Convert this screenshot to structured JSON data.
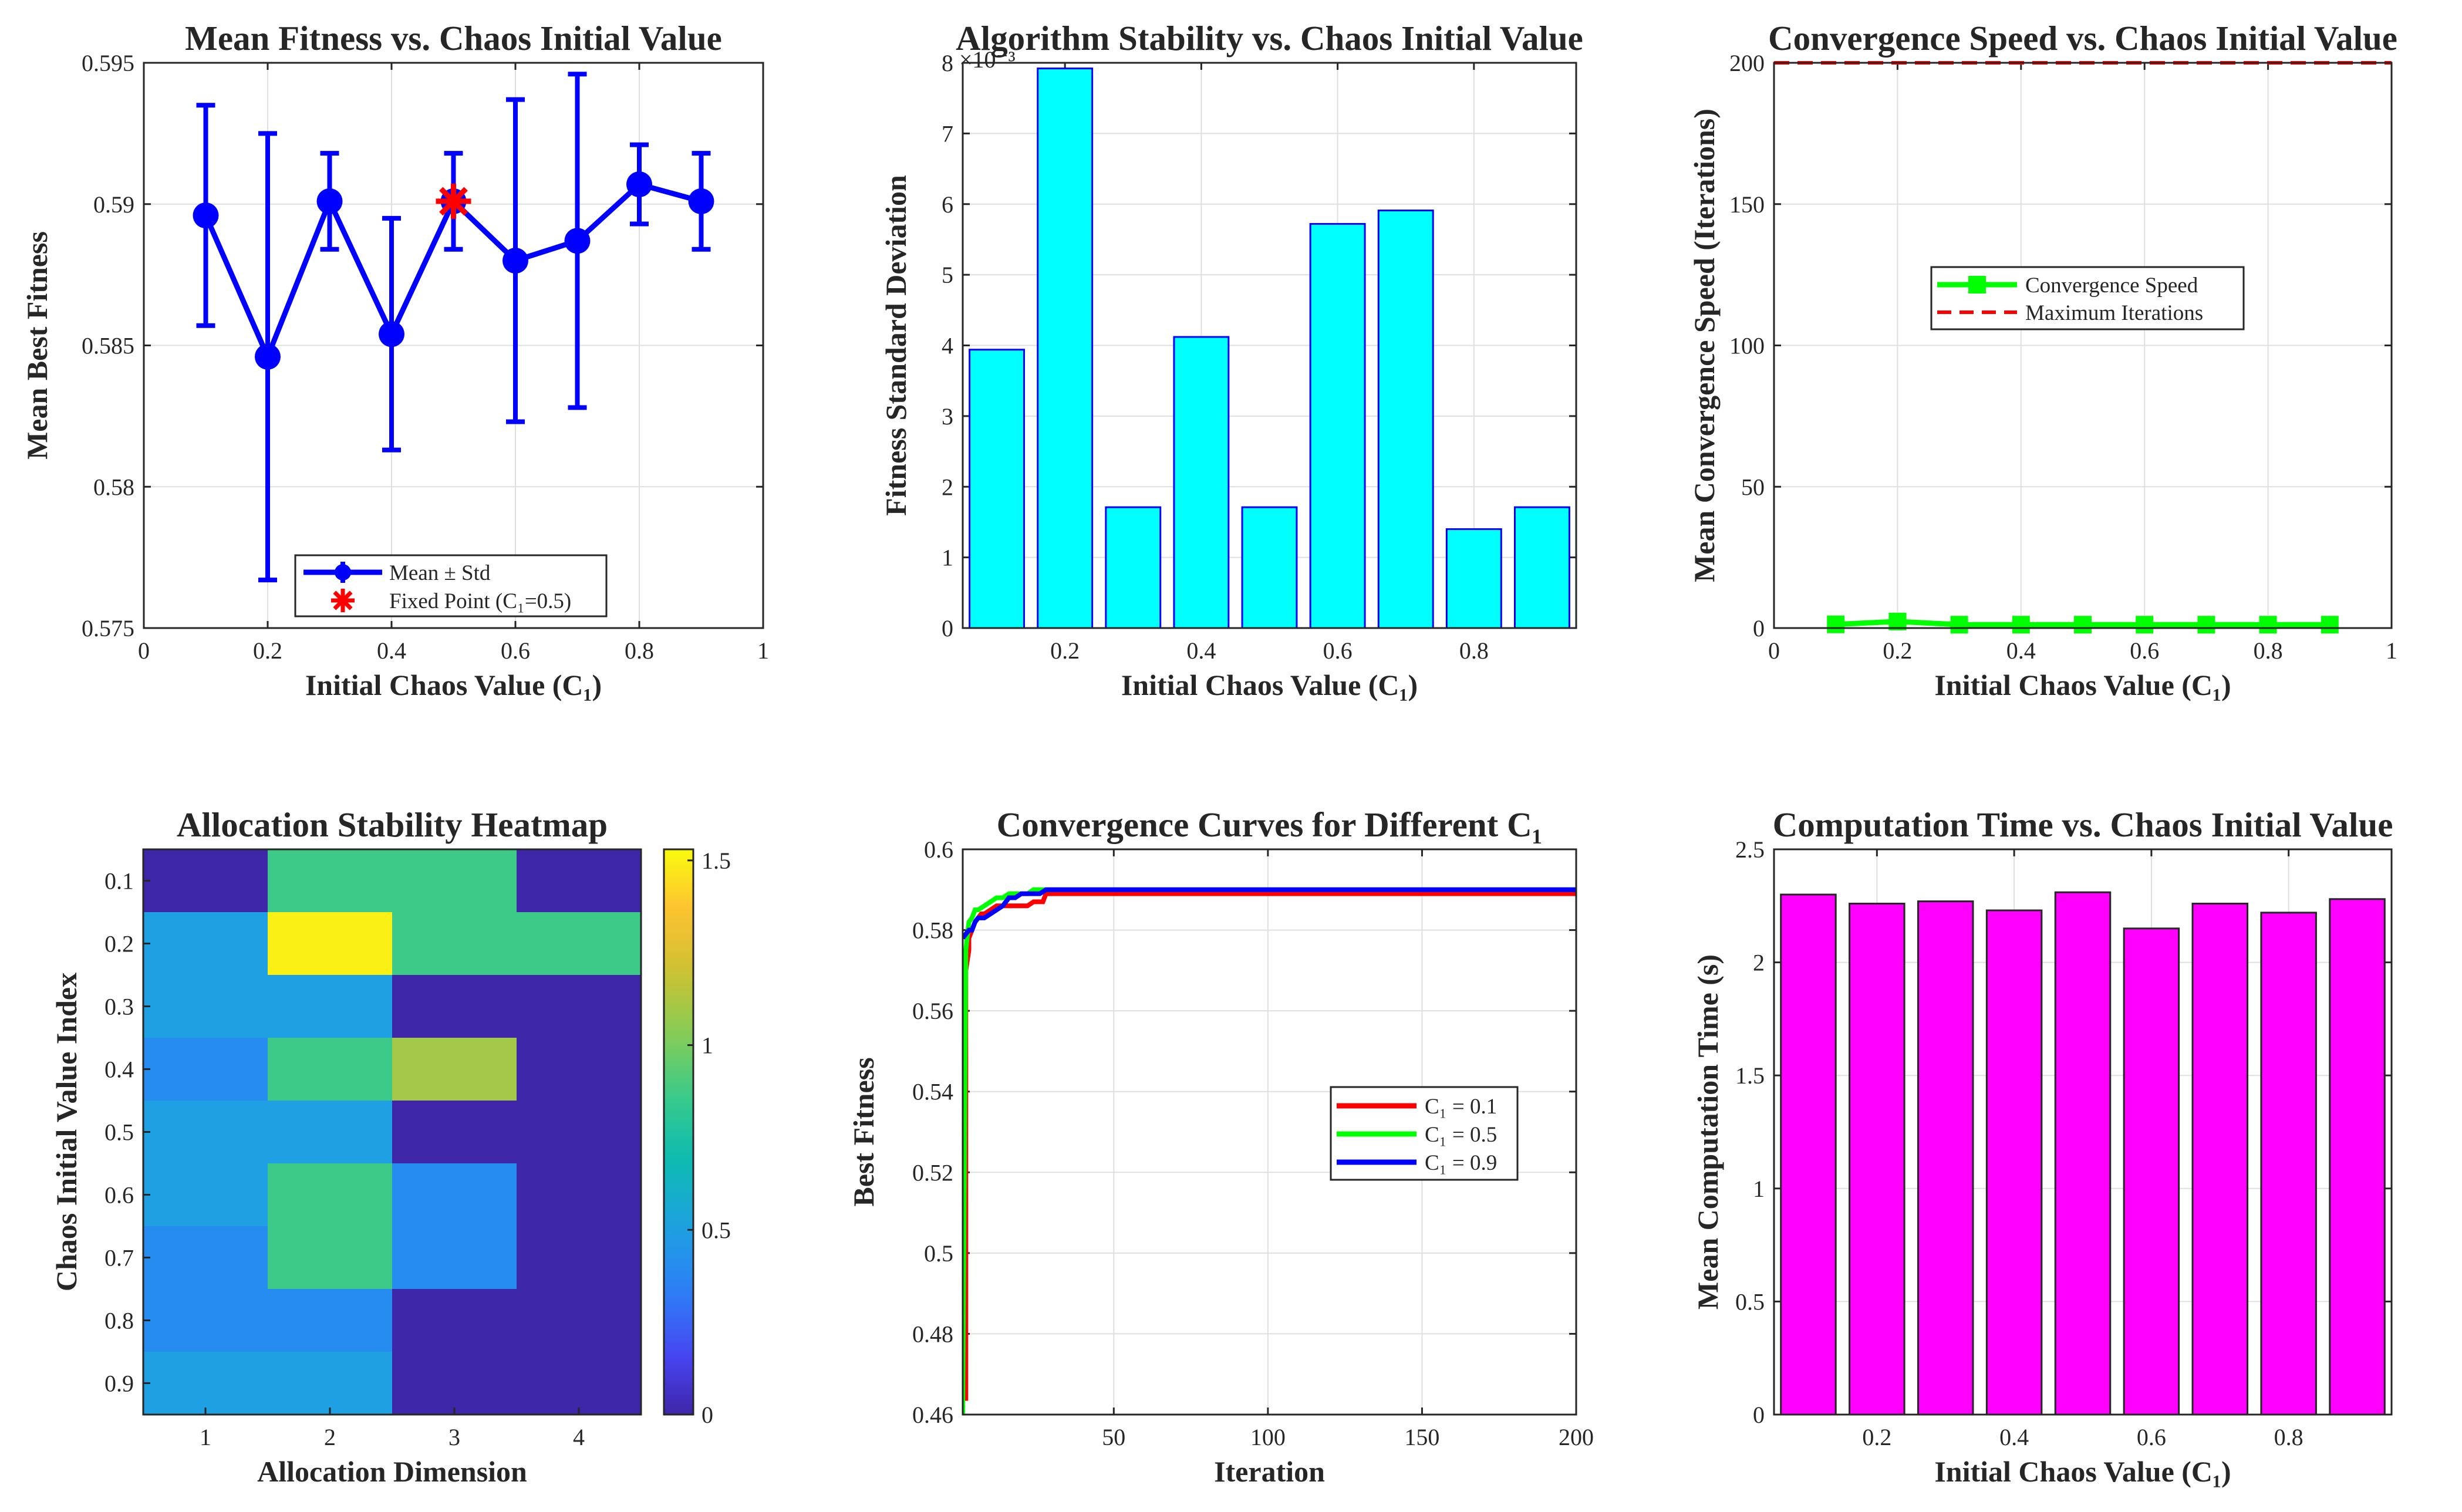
{
  "chart_data": [
    {
      "type": "line",
      "title": "Mean Fitness vs. Chaos Initial Value",
      "xlabel": "Initial Chaos Value (C₁)",
      "ylabel": "Mean Best Fitness",
      "xlim": [
        0,
        1
      ],
      "ylim": [
        0.575,
        0.595
      ],
      "xticks": [
        "0",
        "0.2",
        "0.4",
        "0.6",
        "0.8",
        "1"
      ],
      "yticks": [
        "0.575",
        "0.58",
        "0.585",
        "0.59",
        "0.595"
      ],
      "grid": true,
      "legend_position": "bottom-center",
      "x": [
        0.1,
        0.2,
        0.3,
        0.4,
        0.5,
        0.6,
        0.7,
        0.8,
        0.9
      ],
      "series": [
        {
          "name": "Mean ± Std",
          "color": "#0000ff",
          "values": [
            0.5896,
            0.5846,
            0.5901,
            0.5854,
            0.5901,
            0.588,
            0.5887,
            0.5907,
            0.5901
          ],
          "err": [
            0.0039,
            0.0079,
            0.0017,
            0.0041,
            0.0017,
            0.0057,
            0.0059,
            0.0014,
            0.0017
          ]
        },
        {
          "name": "Fixed Point (C₁=0.5)",
          "color": "#ff0000",
          "marker": "asterisk",
          "x": [
            0.5
          ],
          "values": [
            0.5901
          ]
        }
      ]
    },
    {
      "type": "bar",
      "title": "Algorithm Stability vs. Chaos Initial Value",
      "xlabel": "Initial Chaos Value (C₁)",
      "ylabel": "Fitness Standard Deviation",
      "exponent_label": "×10⁻³",
      "xlim": [
        0.05,
        0.95
      ],
      "ylim": [
        0,
        8
      ],
      "xticks": [
        "0.2",
        "0.4",
        "0.6",
        "0.8"
      ],
      "yticks": [
        "0",
        "1",
        "2",
        "3",
        "4",
        "5",
        "6",
        "7",
        "8"
      ],
      "grid": true,
      "bar_color": "#00ffff",
      "edge_color": "#0000ff",
      "x": [
        0.1,
        0.2,
        0.3,
        0.4,
        0.5,
        0.6,
        0.7,
        0.8,
        0.9
      ],
      "values": [
        3.94,
        7.92,
        1.71,
        4.12,
        1.71,
        5.72,
        5.91,
        1.4,
        1.71
      ]
    },
    {
      "type": "line",
      "title": "Convergence Speed vs. Chaos Initial Value",
      "xlabel": "Initial Chaos Value (C₁)",
      "ylabel": "Mean Convergence Speed (Iterations)",
      "xlim": [
        0,
        1
      ],
      "ylim": [
        0,
        200
      ],
      "xticks": [
        "0",
        "0.2",
        "0.4",
        "0.6",
        "0.8",
        "1"
      ],
      "yticks": [
        "0",
        "50",
        "100",
        "150",
        "200"
      ],
      "grid": true,
      "legend_position": "center",
      "x": [
        0.1,
        0.2,
        0.3,
        0.4,
        0.5,
        0.6,
        0.7,
        0.8,
        0.9
      ],
      "series": [
        {
          "name": "Convergence Speed",
          "color": "#00ff00",
          "values": [
            1.3,
            2.3,
            1.2,
            1.2,
            1.2,
            1.2,
            1.2,
            1.2,
            1.2
          ]
        },
        {
          "name": "Maximum Iterations",
          "color": "#ff0000",
          "style": "dashed",
          "values": [
            200,
            200,
            200,
            200,
            200,
            200,
            200,
            200,
            200
          ]
        }
      ]
    },
    {
      "type": "heatmap",
      "title": "Allocation Stability Heatmap",
      "xlabel": "Allocation Dimension",
      "ylabel": "Chaos Initial Value Index",
      "x_categories": [
        "1",
        "2",
        "3",
        "4"
      ],
      "y_categories": [
        "0.1",
        "0.2",
        "0.3",
        "0.4",
        "0.5",
        "0.6",
        "0.7",
        "0.8",
        "0.9"
      ],
      "colorbar_ticks": [
        "0",
        "0.5",
        "1",
        "1.5"
      ],
      "clim": [
        0,
        1.53
      ],
      "colormap": "parula",
      "values": [
        [
          0.0,
          0.87,
          0.87,
          0.0
        ],
        [
          0.5,
          1.5,
          0.87,
          0.87
        ],
        [
          0.5,
          0.5,
          0.0,
          0.0
        ],
        [
          0.4,
          0.87,
          1.1,
          0.0
        ],
        [
          0.5,
          0.5,
          0.0,
          0.0
        ],
        [
          0.5,
          0.87,
          0.4,
          0.0
        ],
        [
          0.4,
          0.87,
          0.4,
          0.0
        ],
        [
          0.4,
          0.4,
          0.0,
          0.0
        ],
        [
          0.5,
          0.5,
          0.0,
          0.0
        ]
      ]
    },
    {
      "type": "line",
      "title": "Convergence Curves for Different C₁",
      "xlabel": "Iteration",
      "ylabel": "Best Fitness",
      "xlim": [
        1,
        200
      ],
      "ylim": [
        0.46,
        0.6
      ],
      "xticks": [
        "50",
        "100",
        "150",
        "200"
      ],
      "yticks": [
        "0.46",
        "0.48",
        "0.5",
        "0.52",
        "0.54",
        "0.56",
        "0.58",
        "0.6"
      ],
      "grid": true,
      "legend_position": "center-right",
      "series": [
        {
          "name": "C₁ = 0.1",
          "color": "#ff0000",
          "x": [
            1,
            2,
            2,
            3,
            3,
            4,
            5,
            6,
            7,
            8,
            10,
            12,
            14,
            16,
            18,
            20,
            22,
            24,
            26,
            27,
            28,
            30,
            200
          ],
          "values": [
            0.464,
            0.464,
            0.57,
            0.575,
            0.578,
            0.58,
            0.582,
            0.583,
            0.584,
            0.584,
            0.585,
            0.586,
            0.586,
            0.586,
            0.586,
            0.586,
            0.586,
            0.587,
            0.587,
            0.587,
            0.589,
            0.589,
            0.589
          ]
        },
        {
          "name": "C₁ = 0.5",
          "color": "#00ff00",
          "x": [
            1,
            2,
            3,
            4,
            5,
            6,
            8,
            10,
            12,
            14,
            16,
            18,
            20,
            22,
            24,
            26,
            30,
            200
          ],
          "values": [
            0.46,
            0.575,
            0.582,
            0.583,
            0.585,
            0.585,
            0.586,
            0.587,
            0.588,
            0.588,
            0.589,
            0.589,
            0.589,
            0.589,
            0.59,
            0.59,
            0.59,
            0.59
          ]
        },
        {
          "name": "C₁ = 0.9",
          "color": "#0000ff",
          "x": [
            1,
            2,
            3,
            4,
            5,
            6,
            8,
            10,
            12,
            14,
            16,
            18,
            20,
            22,
            24,
            26,
            28,
            30,
            200
          ],
          "values": [
            0.578,
            0.579,
            0.58,
            0.58,
            0.582,
            0.583,
            0.583,
            0.584,
            0.585,
            0.586,
            0.588,
            0.588,
            0.589,
            0.589,
            0.589,
            0.589,
            0.59,
            0.59,
            0.59
          ]
        }
      ]
    },
    {
      "type": "bar",
      "title": "Computation Time vs. Chaos Initial Value",
      "xlabel": "Initial Chaos Value (C₁)",
      "ylabel": "Mean Computation Time (s)",
      "xlim": [
        0.05,
        0.95
      ],
      "ylim": [
        0,
        2.5
      ],
      "xticks": [
        "0.2",
        "0.4",
        "0.6",
        "0.8"
      ],
      "yticks": [
        "0",
        "0.5",
        "1",
        "1.5",
        "2",
        "2.5"
      ],
      "grid": true,
      "bar_color": "#ff00ff",
      "edge_color": "#262626",
      "x": [
        0.1,
        0.2,
        0.3,
        0.4,
        0.5,
        0.6,
        0.7,
        0.8,
        0.9
      ],
      "values": [
        2.3,
        2.26,
        2.27,
        2.23,
        2.31,
        2.15,
        2.26,
        2.22,
        2.28
      ]
    }
  ]
}
